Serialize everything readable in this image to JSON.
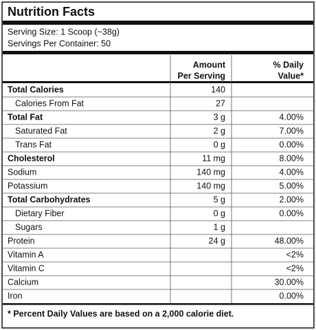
{
  "title": "Nutrition Facts",
  "serving": [
    "Serving Size: 1 Scoop (~38g)",
    "Servings Per Container: 50"
  ],
  "table": {
    "header": {
      "amount": [
        "Amount",
        "Per Serving"
      ],
      "daily_value": [
        "% Daily",
        "Value*"
      ]
    },
    "rows": [
      [
        "Total Calories",
        "140",
        null
      ],
      [
        "Calories From Fat",
        "27",
        null
      ],
      [
        "Total Fat",
        "3 g",
        "4.00%"
      ],
      [
        "Saturated Fat",
        "2 g",
        "7.00%"
      ],
      [
        "Trans Fat",
        "0 g",
        "0.00%"
      ],
      [
        "Cholesterol",
        "11 mg",
        "8.00%"
      ],
      [
        "Sodium",
        "140 mg",
        "4.00%"
      ],
      [
        "Potassium",
        "140 mg",
        "5.00%"
      ],
      [
        "Total Carbohydrates",
        "5 g",
        "2.00%"
      ],
      [
        "Dietary Fiber",
        "0 g",
        "0.00%"
      ],
      [
        "Sugars",
        "1 g",
        null
      ],
      [
        "Protein",
        "24 g",
        "48.00%"
      ],
      [
        "Vitamin A",
        null,
        "<2%"
      ],
      [
        "Vitamin C",
        null,
        "<2%"
      ],
      [
        "Calcium",
        null,
        "30.00%"
      ],
      [
        "Iron",
        null,
        "0.00%"
      ]
    ]
  },
  "footnote": "* Percent Daily Values are based on a 2,000 calorie diet."
}
